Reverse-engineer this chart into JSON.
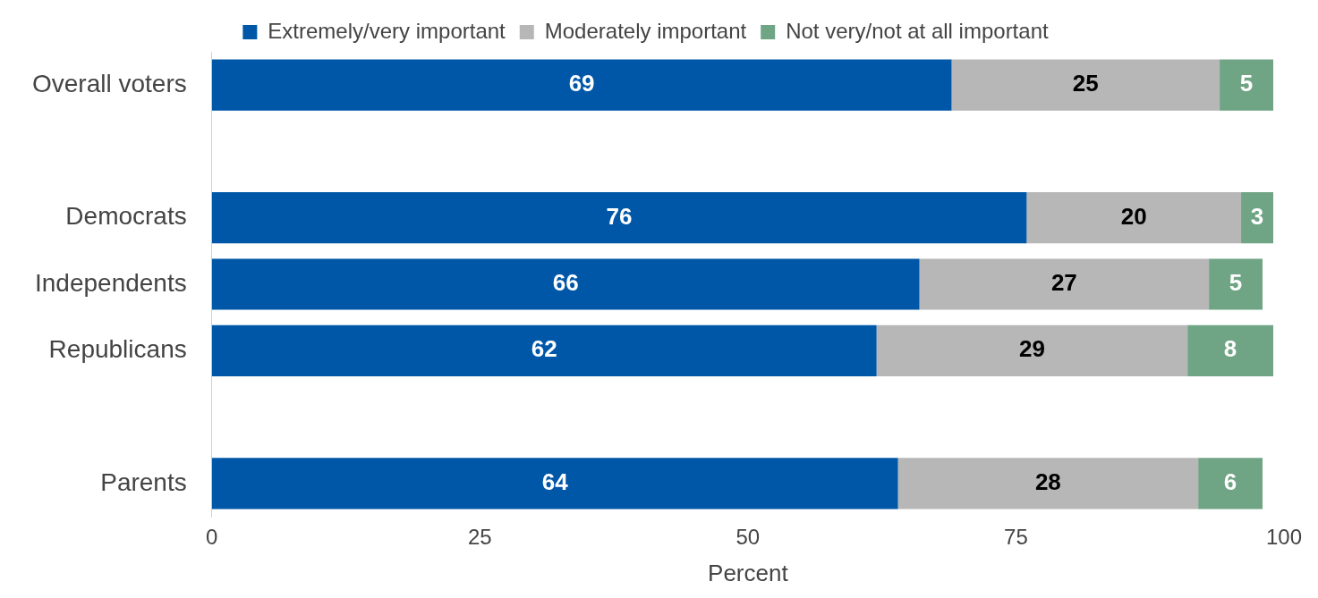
{
  "chart_data": {
    "type": "bar",
    "orientation": "horizontal",
    "stacked": true,
    "xlabel": "Percent",
    "categories": [
      "Overall voters",
      null,
      "Democrats",
      "Independents",
      "Republicans",
      null,
      "Parents"
    ],
    "series": [
      {
        "name": "Extremely/very important",
        "color": "#0057a8",
        "values": [
          69,
          null,
          76,
          66,
          62,
          null,
          64
        ]
      },
      {
        "name": "Moderately important",
        "color": "#b7b7b7",
        "values": [
          25,
          null,
          20,
          27,
          29,
          null,
          28
        ]
      },
      {
        "name": "Not very/not at all important",
        "color": "#6fa485",
        "values": [
          5,
          null,
          3,
          5,
          8,
          null,
          6
        ]
      }
    ],
    "xlim": [
      0,
      100
    ],
    "xticks": [
      0,
      25,
      50,
      75,
      100
    ],
    "grid": false,
    "legend": "top",
    "data_labels": true
  }
}
